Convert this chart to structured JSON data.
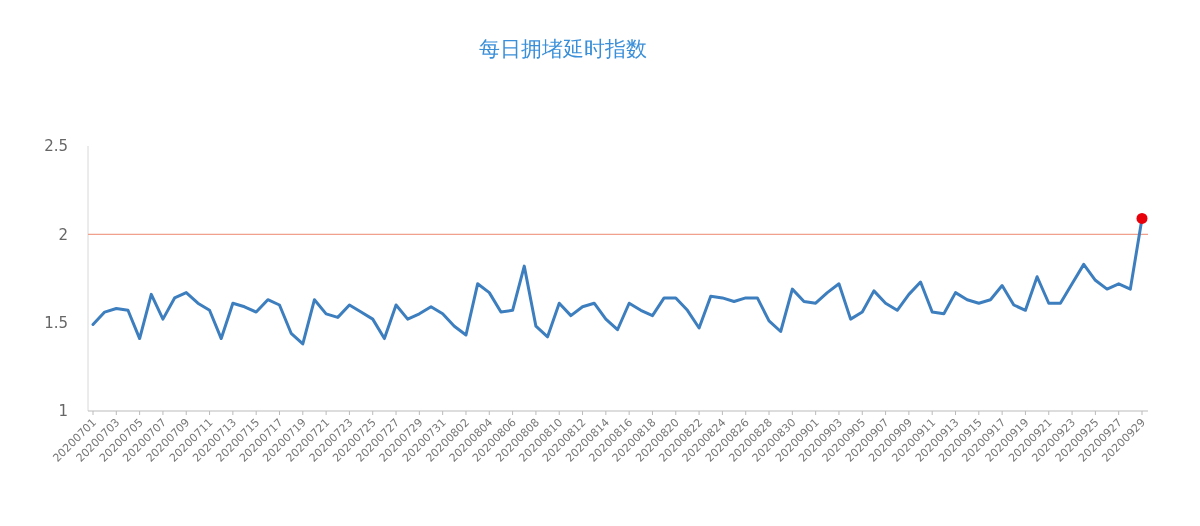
{
  "chart_data": {
    "type": "line",
    "title": "每日拥堵延时指数",
    "categories": [
      "20200701",
      null,
      "20200703",
      null,
      "20200705",
      null,
      "20200707",
      null,
      "20200709",
      null,
      "20200711",
      null,
      "20200713",
      null,
      "20200715",
      null,
      "20200717",
      null,
      "20200719",
      null,
      "20200721",
      null,
      "20200723",
      null,
      "20200725",
      null,
      "20200727",
      null,
      "20200729",
      null,
      "20200731",
      null,
      "20200802",
      null,
      "20200804",
      null,
      "20200806",
      null,
      "20200808",
      null,
      "20200810",
      null,
      "20200812",
      null,
      "20200814",
      null,
      "20200816",
      null,
      "20200818",
      null,
      "20200820",
      null,
      "20200822",
      null,
      "20200824",
      null,
      "20200826",
      null,
      "20200828",
      null,
      "20200830",
      null,
      "20200901",
      null,
      "20200903",
      null,
      "20200905",
      null,
      "20200907",
      null,
      "20200909",
      null,
      "20200911",
      null,
      "20200913",
      null,
      "20200915",
      null,
      "20200917",
      null,
      "20200919",
      null,
      "20200921",
      null,
      "20200923",
      null,
      "20200925",
      null,
      "20200927",
      null,
      "20200929"
    ],
    "series": [
      {
        "color": "#3d7ebf",
        "marker": "none",
        "values": [
          1.49,
          1.56,
          1.58,
          1.57,
          1.41,
          1.66,
          1.52,
          1.64,
          1.67,
          1.61,
          1.57,
          1.41,
          1.61,
          1.59,
          1.56,
          1.63,
          1.6,
          1.44,
          1.38,
          1.63,
          1.55,
          1.53,
          1.6,
          1.56,
          1.52,
          1.41,
          1.6,
          1.52,
          1.55,
          1.59,
          1.55,
          1.48,
          1.43,
          1.72,
          1.67,
          1.56,
          1.57,
          1.82,
          1.48,
          1.42,
          1.61,
          1.54,
          1.59,
          1.61,
          1.52,
          1.46,
          1.61,
          1.57,
          1.54,
          1.64,
          1.64,
          1.57,
          1.47,
          1.65,
          1.64,
          1.62,
          1.64,
          1.64,
          1.51,
          1.45,
          1.69,
          1.62,
          1.61,
          1.67,
          1.72,
          1.52,
          1.56,
          1.68,
          1.61,
          1.57,
          1.66,
          1.73,
          1.56,
          1.55,
          1.67,
          1.63,
          1.61,
          1.63,
          1.71,
          1.6,
          1.57,
          1.76,
          1.61,
          1.61,
          1.72,
          1.83,
          1.74,
          1.69,
          1.72,
          1.69,
          2.09
        ]
      },
      {
        "type": "scatter",
        "marker": "circle",
        "color": "#e8000b",
        "x": [
          "20200929"
        ],
        "values": [
          2.09
        ]
      }
    ],
    "ylim": [
      1,
      2.5
    ],
    "yticks": [
      1,
      1.5,
      2,
      2.5
    ],
    "ref_lines": [
      {
        "axis": "y",
        "value": 2,
        "color": "#f0a08c"
      }
    ],
    "line_style": "solid",
    "grid": false
  }
}
